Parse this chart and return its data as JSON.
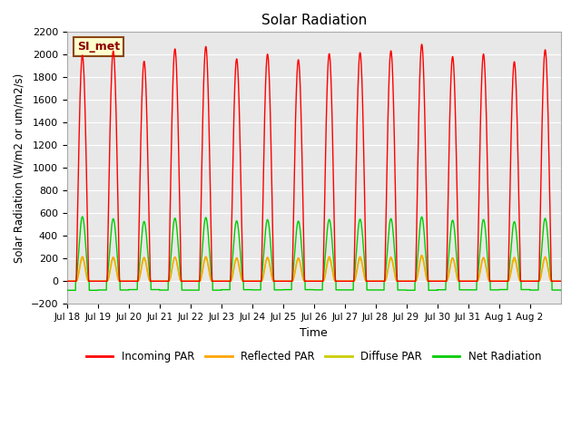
{
  "title": "Solar Radiation",
  "ylabel": "Solar Radiation (W/m2 or um/m2/s)",
  "xlabel": "Time",
  "ylim": [
    -200,
    2200
  ],
  "yticks": [
    -200,
    0,
    200,
    400,
    600,
    800,
    1000,
    1200,
    1400,
    1600,
    1800,
    2000,
    2200
  ],
  "xtick_labels": [
    "Jul 18",
    "Jul 19",
    "Jul 20",
    "Jul 21",
    "Jul 22",
    "Jul 23",
    "Jul 24",
    "Jul 25",
    "Jul 26",
    "Jul 27",
    "Jul 28",
    "Jul 29",
    "Jul 30",
    "Jul 31",
    "Aug 1",
    "Aug 2"
  ],
  "n_days": 16,
  "annotation": "SI_met",
  "annotation_bbox": {
    "facecolor": "#ffffcc",
    "edgecolor": "#8B4513",
    "linewidth": 1.5
  },
  "annotation_color": "#8B0000",
  "colors": {
    "incoming_par": "#FF0000",
    "reflected_par": "#FFA500",
    "diffuse_par": "#CCCC00",
    "net_radiation": "#00CC00"
  },
  "legend_labels": [
    "Incoming PAR",
    "Reflected PAR",
    "Diffuse PAR",
    "Net Radiation"
  ],
  "bg_color": "#E8E8E8",
  "fig_bg": "#FFFFFF",
  "grid_color": "#FFFFFF",
  "incoming_peak": 2100,
  "reflected_peak": 230,
  "diffuse_peak": 215,
  "net_peak": 570,
  "net_night": -80
}
